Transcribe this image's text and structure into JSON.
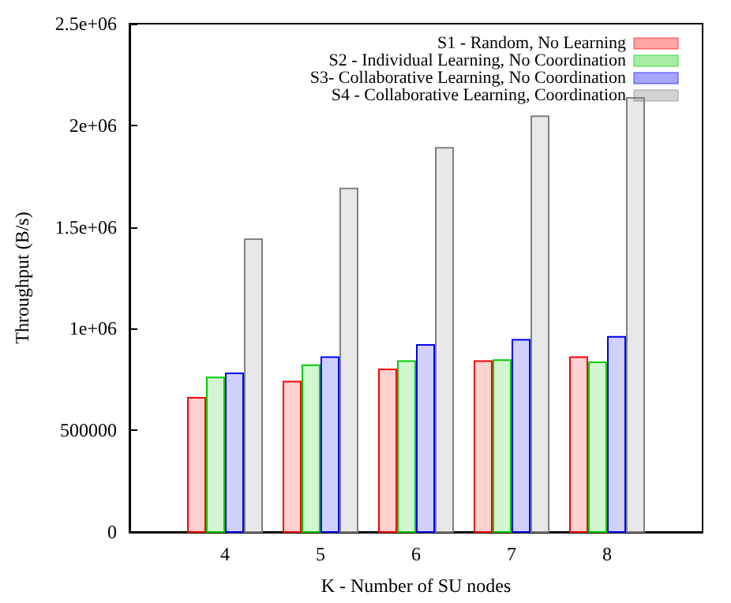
{
  "chart_data": {
    "type": "bar",
    "xlabel": "K - Number of SU nodes",
    "ylabel": "Throughput (B/s)",
    "x": [
      4,
      5,
      6,
      7,
      8
    ],
    "xlim": [
      3,
      9
    ],
    "xticks": [
      4,
      5,
      6,
      7,
      8
    ],
    "ylim": [
      0,
      2500000
    ],
    "yticks": [
      0,
      500000,
      {
        "value": 1000000,
        "label": "1e+06"
      },
      {
        "value": 1500000,
        "label": "1.5e+06"
      },
      {
        "value": 2000000,
        "label": "2e+06"
      },
      {
        "value": 2500000,
        "label": "2.5e+06"
      }
    ],
    "legend": "top right",
    "grid": false,
    "series": [
      {
        "name": "S1 - Random, No Learning",
        "color": "#ff0000",
        "values": [
          660000,
          740000,
          800000,
          840000,
          860000
        ]
      },
      {
        "name": "S2 - Individual Learning, No Coordination",
        "color": "#00cc00",
        "values": [
          760000,
          820000,
          840000,
          845000,
          835000
        ]
      },
      {
        "name": "S3- Collaborative Learning, No Coordination",
        "color": "#0000ff",
        "values": [
          780000,
          860000,
          920000,
          945000,
          960000
        ]
      },
      {
        "name": "S4 - Collaborative Learning, Coordination",
        "color": "#808080",
        "values": [
          1440000,
          1690000,
          1890000,
          2045000,
          2135000
        ]
      }
    ]
  }
}
